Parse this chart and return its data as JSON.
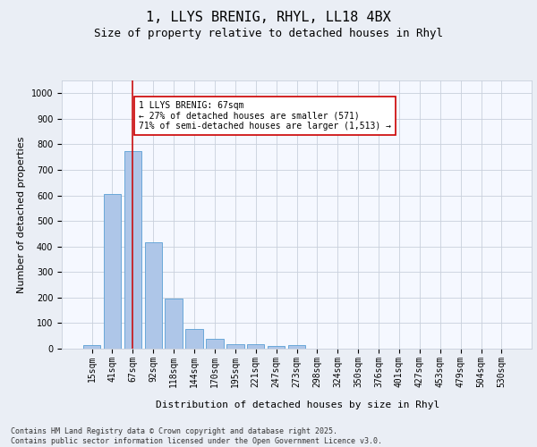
{
  "title_line1": "1, LLYS BRENIG, RHYL, LL18 4BX",
  "title_line2": "Size of property relative to detached houses in Rhyl",
  "xlabel": "Distribution of detached houses by size in Rhyl",
  "ylabel": "Number of detached properties",
  "categories": [
    "15sqm",
    "41sqm",
    "67sqm",
    "92sqm",
    "118sqm",
    "144sqm",
    "170sqm",
    "195sqm",
    "221sqm",
    "247sqm",
    "273sqm",
    "298sqm",
    "324sqm",
    "350sqm",
    "376sqm",
    "401sqm",
    "427sqm",
    "453sqm",
    "479sqm",
    "504sqm",
    "530sqm"
  ],
  "values": [
    15,
    605,
    775,
    415,
    195,
    78,
    38,
    18,
    17,
    10,
    13,
    0,
    0,
    0,
    0,
    0,
    0,
    0,
    0,
    0,
    0
  ],
  "bar_color": "#aec6e8",
  "bar_edge_color": "#5a9fd4",
  "vline_x": 2,
  "vline_color": "#cc0000",
  "annotation_text": "1 LLYS BRENIG: 67sqm\n← 27% of detached houses are smaller (571)\n71% of semi-detached houses are larger (1,513) →",
  "annotation_box_color": "#ffffff",
  "annotation_box_edge_color": "#cc0000",
  "ylim": [
    0,
    1050
  ],
  "yticks": [
    0,
    100,
    200,
    300,
    400,
    500,
    600,
    700,
    800,
    900,
    1000
  ],
  "bg_color": "#eaeef5",
  "plot_bg_color": "#f5f8ff",
  "grid_color": "#c8d0dc",
  "footer_text": "Contains HM Land Registry data © Crown copyright and database right 2025.\nContains public sector information licensed under the Open Government Licence v3.0.",
  "title_fontsize": 11,
  "subtitle_fontsize": 9,
  "axis_label_fontsize": 8,
  "tick_fontsize": 7,
  "annotation_fontsize": 7,
  "footer_fontsize": 6
}
